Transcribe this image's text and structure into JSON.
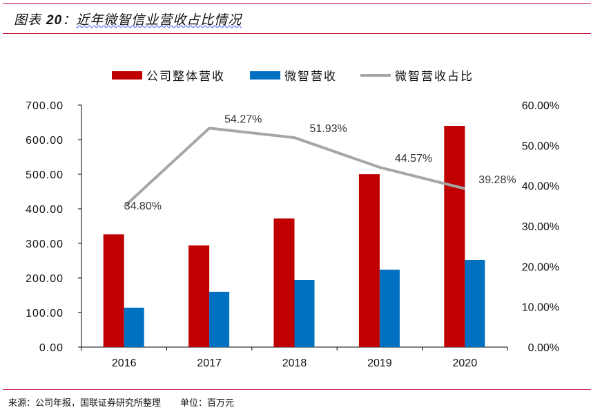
{
  "header": {
    "title_prefix": "图表 ",
    "title_num": "20",
    "title_colon": "：",
    "title_text": "近年微智信业营收占比情况"
  },
  "footer": {
    "source": "来源：公司年报，国联证券研究所整理",
    "unit": "单位：百万元"
  },
  "colors": {
    "revenue": "#c00000",
    "weizhi": "#0070c0",
    "ratio": "#a6a6a6",
    "rule": "#c0143c"
  },
  "chart_data": {
    "type": "bar",
    "categories": [
      "2016",
      "2017",
      "2018",
      "2019",
      "2020"
    ],
    "series": [
      {
        "name": "公司整体营收",
        "type": "bar",
        "axis": "left",
        "values": [
          326,
          294,
          372,
          500,
          640
        ]
      },
      {
        "name": "微智营收",
        "type": "bar",
        "axis": "left",
        "values": [
          114,
          160,
          194,
          224,
          252
        ]
      },
      {
        "name": "微智营收占比",
        "type": "line",
        "axis": "right",
        "values": [
          34.8,
          54.27,
          51.93,
          44.57,
          39.28
        ],
        "labels": [
          "34.80%",
          "54.27%",
          "51.93%",
          "44.57%",
          "39.28%"
        ]
      }
    ],
    "ylim_left": [
      0,
      700
    ],
    "yticks_left": [
      "0.00",
      "100.00",
      "200.00",
      "300.00",
      "400.00",
      "500.00",
      "600.00",
      "700.00"
    ],
    "ylim_right": [
      0,
      60
    ],
    "yticks_right": [
      "0.00%",
      "10.00%",
      "20.00%",
      "30.00%",
      "40.00%",
      "50.00%",
      "60.00%"
    ],
    "legend_position": "top",
    "grid": false
  }
}
